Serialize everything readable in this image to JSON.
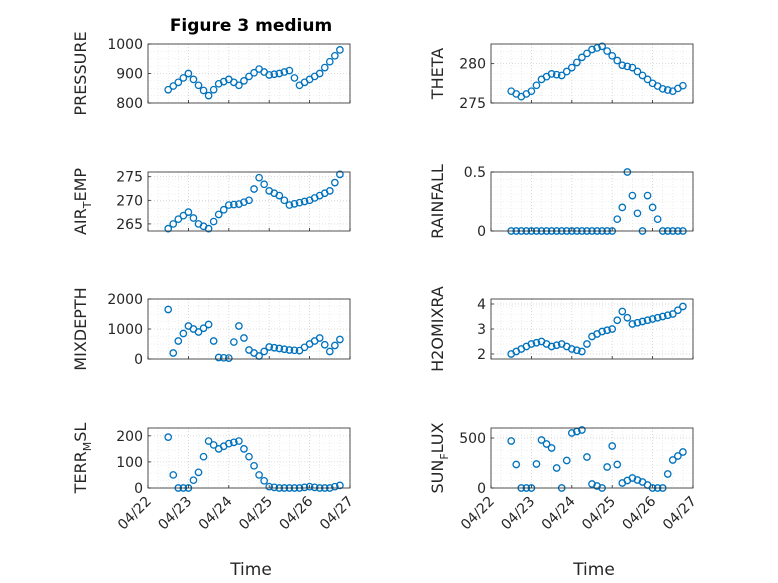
{
  "figure": {
    "title": "Figure 3 medium",
    "xlabel": "Time",
    "xticks": [
      "04/22",
      "04/23",
      "04/24",
      "04/25",
      "04/26",
      "04/27"
    ],
    "marker_color": "#0072BD"
  },
  "chart_data": [
    {
      "type": "scatter",
      "marker": "circle-open",
      "ylabel_main": "PRESSURE",
      "ylabel_sub": "",
      "ylim": [
        800,
        1000
      ],
      "yticks": [
        "1000",
        "900",
        "800"
      ],
      "ytick_values": [
        1000,
        900,
        800
      ],
      "grid": true,
      "title": "Figure 3 medium",
      "x": [
        "04/22 12:00",
        "04/22 18:00",
        "04/23 00:00",
        "04/23 06:00",
        "04/23 12:00",
        "04/23 18:00",
        "04/24 00:00",
        "04/24 06:00",
        "04/24 12:00",
        "04/24 18:00",
        "04/25 00:00",
        "04/25 06:00",
        "04/25 12:00",
        "04/25 18:00",
        "04/26 00:00",
        "04/26 06:00",
        "04/26 12:00",
        "04/26 18:00"
      ],
      "y": [
        845,
        870,
        900,
        860,
        825,
        865,
        880,
        860,
        890,
        915,
        895,
        900,
        910,
        860,
        880,
        900,
        940,
        980
      ]
    },
    {
      "type": "scatter",
      "marker": "circle-open",
      "ylabel_main": "THETA",
      "ylabel_sub": "",
      "ylim": [
        275,
        282.5
      ],
      "yticks": [
        "280",
        "275"
      ],
      "ytick_values": [
        280,
        275
      ],
      "grid": true,
      "x": [
        "04/22 12:00",
        "04/22 18:00",
        "04/23 00:00",
        "04/23 06:00",
        "04/23 12:00",
        "04/23 18:00",
        "04/24 00:00",
        "04/24 06:00",
        "04/24 12:00",
        "04/24 18:00",
        "04/25 00:00",
        "04/25 06:00",
        "04/25 12:00",
        "04/25 18:00",
        "04/26 00:00",
        "04/26 06:00",
        "04/26 12:00",
        "04/26 18:00"
      ],
      "y": [
        276.5,
        275.8,
        276.5,
        278.0,
        278.7,
        278.5,
        279.5,
        280.8,
        281.8,
        282.2,
        281.0,
        279.8,
        279.5,
        278.5,
        277.5,
        276.8,
        276.5,
        277.2
      ]
    },
    {
      "type": "scatter",
      "marker": "circle-open",
      "ylabel_main": "AIR",
      "ylabel_sub": "T",
      "ylabel_tail": "EMP",
      "ylim": [
        263.5,
        276
      ],
      "yticks": [
        "275",
        "270",
        "265"
      ],
      "ytick_values": [
        275,
        270,
        265
      ],
      "grid": true,
      "x": [
        "04/22 12:00",
        "04/22 18:00",
        "04/23 00:00",
        "04/23 06:00",
        "04/23 12:00",
        "04/23 18:00",
        "04/24 00:00",
        "04/24 06:00",
        "04/24 12:00",
        "04/24 18:00",
        "04/25 00:00",
        "04/25 06:00",
        "04/25 12:00",
        "04/25 18:00",
        "04/26 00:00",
        "04/26 06:00",
        "04/26 12:00",
        "04/26 18:00"
      ],
      "y": [
        264.0,
        266.0,
        267.5,
        265.0,
        264.0,
        267.0,
        269.0,
        269.2,
        270.0,
        274.8,
        272.0,
        271.0,
        269.0,
        269.5,
        270.0,
        271.0,
        272.0,
        275.5
      ]
    },
    {
      "type": "scatter",
      "marker": "circle-open",
      "ylabel_main": "RAINFALL",
      "ylabel_sub": "",
      "ylim": [
        0,
        0.5
      ],
      "yticks": [
        "0.5",
        "0"
      ],
      "ytick_values": [
        0.5,
        0
      ],
      "grid": true,
      "x": [
        "04/22 12:00",
        "04/23 00:00",
        "04/23 12:00",
        "04/24 00:00",
        "04/24 12:00",
        "04/25 00:00",
        "04/25 06:00",
        "04/25 09:00",
        "04/25 12:00",
        "04/25 18:00",
        "04/25 21:00",
        "04/26 00:00",
        "04/26 06:00",
        "04/26 18:00"
      ],
      "y": [
        0,
        0,
        0,
        0,
        0,
        0,
        0.2,
        0.5,
        0.3,
        0,
        0.3,
        0.2,
        0,
        0
      ]
    },
    {
      "type": "scatter",
      "marker": "circle-open",
      "ylabel_main": "MIXDEPTH",
      "ylabel_sub": "",
      "ylim": [
        0,
        2000
      ],
      "yticks": [
        "2000",
        "1000",
        "0"
      ],
      "ytick_values": [
        2000,
        1000,
        0
      ],
      "grid": true,
      "x": [
        "04/22 12:00",
        "04/22 15:00",
        "04/22 18:00",
        "04/23 00:00",
        "04/23 06:00",
        "04/23 12:00",
        "04/23 18:00",
        "04/24 00:00",
        "04/24 06:00",
        "04/24 12:00",
        "04/24 18:00",
        "04/25 00:00",
        "04/25 06:00",
        "04/25 12:00",
        "04/25 18:00",
        "04/26 00:00",
        "04/26 06:00",
        "04/26 12:00",
        "04/26 18:00"
      ],
      "y": [
        1650,
        200,
        600,
        1100,
        900,
        1150,
        50,
        30,
        1100,
        300,
        100,
        400,
        350,
        300,
        280,
        500,
        700,
        250,
        650
      ]
    },
    {
      "type": "scatter",
      "marker": "circle-open",
      "ylabel_main": "H2OMIXRA",
      "ylabel_sub": "",
      "ylim": [
        1.8,
        4.2
      ],
      "yticks": [
        "4",
        "3",
        "2"
      ],
      "ytick_values": [
        4,
        3,
        2
      ],
      "grid": true,
      "x": [
        "04/22 12:00",
        "04/22 18:00",
        "04/23 00:00",
        "04/23 06:00",
        "04/23 12:00",
        "04/23 18:00",
        "04/24 00:00",
        "04/24 06:00",
        "04/24 12:00",
        "04/24 18:00",
        "04/25 00:00",
        "04/25 06:00",
        "04/25 12:00",
        "04/25 18:00",
        "04/26 00:00",
        "04/26 06:00",
        "04/26 12:00",
        "04/26 18:00"
      ],
      "y": [
        2.0,
        2.2,
        2.4,
        2.5,
        2.3,
        2.4,
        2.2,
        2.1,
        2.7,
        2.9,
        3.0,
        3.7,
        3.2,
        3.3,
        3.4,
        3.5,
        3.6,
        3.9
      ]
    },
    {
      "type": "scatter",
      "marker": "circle-open",
      "ylabel_main": "TERR",
      "ylabel_sub": "M",
      "ylabel_tail": "SL",
      "ylim": [
        0,
        230
      ],
      "yticks": [
        "200",
        "100",
        "0"
      ],
      "ytick_values": [
        200,
        100,
        0
      ],
      "grid": true,
      "x": [
        "04/22 12:00",
        "04/22 15:00",
        "04/22 18:00",
        "04/23 00:00",
        "04/23 06:00",
        "04/23 12:00",
        "04/23 18:00",
        "04/24 00:00",
        "04/24 06:00",
        "04/24 12:00",
        "04/24 18:00",
        "04/25 00:00",
        "04/25 06:00",
        "04/25 12:00",
        "04/25 18:00",
        "04/26 00:00",
        "04/26 06:00",
        "04/26 12:00",
        "04/26 18:00"
      ],
      "y": [
        195,
        50,
        0,
        0,
        60,
        180,
        150,
        170,
        180,
        120,
        50,
        5,
        0,
        0,
        0,
        5,
        0,
        0,
        10
      ]
    },
    {
      "type": "scatter",
      "marker": "circle-open",
      "ylabel_main": "SUN",
      "ylabel_sub": "F",
      "ylabel_tail": "LUX",
      "ylim": [
        0,
        600
      ],
      "yticks": [
        "500",
        "0"
      ],
      "ytick_values": [
        500,
        0
      ],
      "grid": true,
      "x": [
        "04/22 12:00",
        "04/22 18:00",
        "04/23 00:00",
        "04/23 06:00",
        "04/23 12:00",
        "04/23 18:00",
        "04/24 00:00",
        "04/24 06:00",
        "04/24 12:00",
        "04/24 18:00",
        "04/25 00:00",
        "04/25 06:00",
        "04/25 12:00",
        "04/25 18:00",
        "04/26 00:00",
        "04/26 06:00",
        "04/26 12:00",
        "04/26 18:00"
      ],
      "y": [
        470,
        0,
        0,
        480,
        400,
        0,
        550,
        580,
        40,
        0,
        420,
        50,
        100,
        60,
        0,
        0,
        280,
        360
      ]
    }
  ]
}
